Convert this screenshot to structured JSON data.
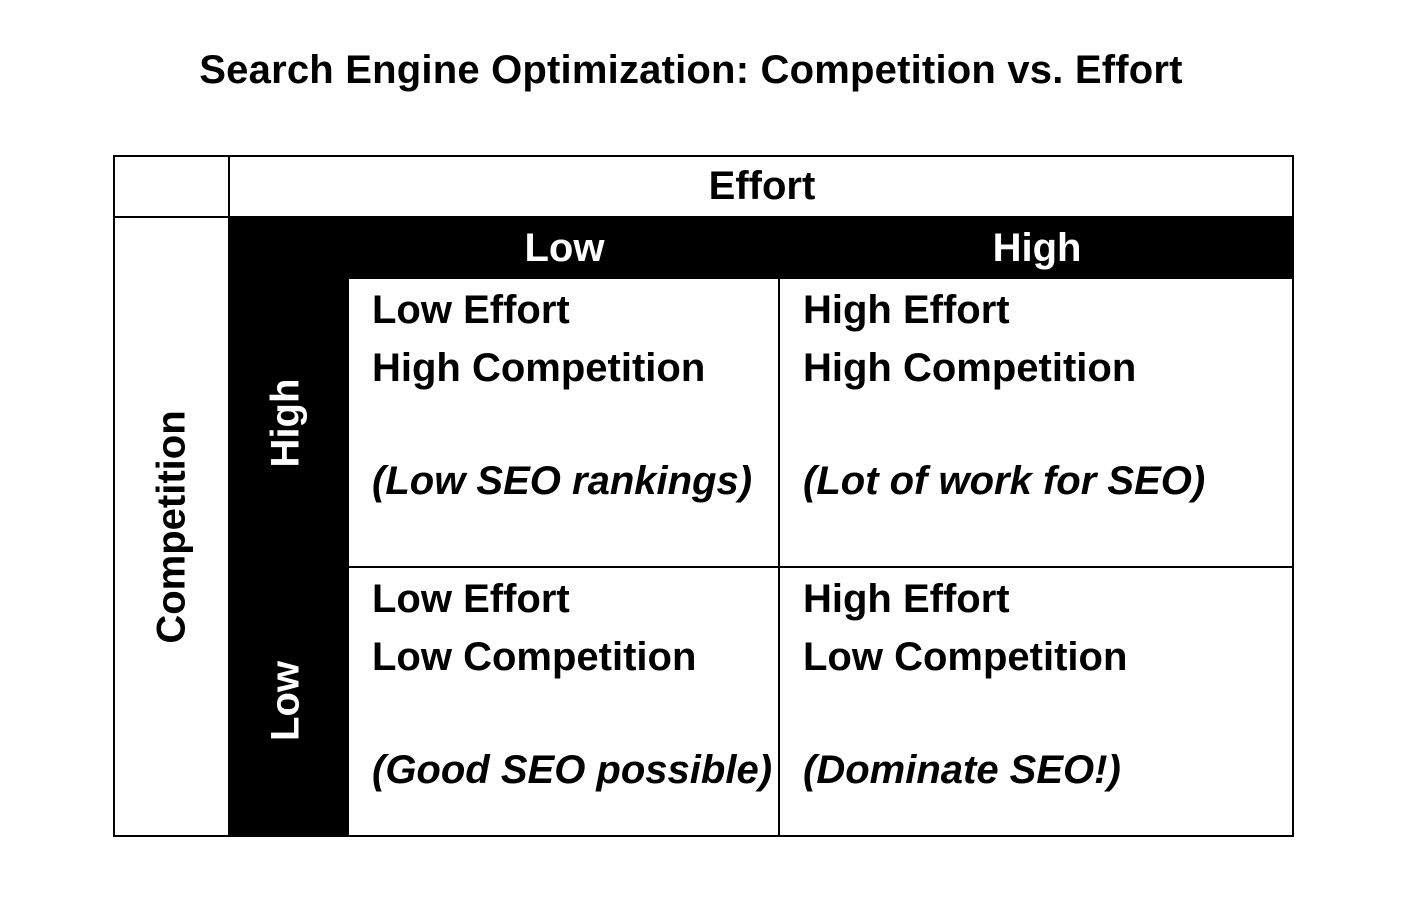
{
  "title": "Search Engine Optimization: Competition vs. Effort",
  "matrix": {
    "column_axis_label": "Effort",
    "row_axis_label": "Competition",
    "columns": [
      "Low",
      "High"
    ],
    "rows": [
      "High",
      "Low"
    ],
    "cells": {
      "high_competition_low_effort": {
        "line1": "Low Effort",
        "line2": "High Competition",
        "note": "(Low SEO rankings)"
      },
      "high_competition_high_effort": {
        "line1": "High Effort",
        "line2": "High Competition",
        "note": "(Lot of work for SEO)"
      },
      "low_competition_low_effort": {
        "line1": "Low Effort",
        "line2": "Low Competition",
        "note": "(Good SEO possible)"
      },
      "low_competition_high_effort": {
        "line1": "High Effort",
        "line2": "Low Competition",
        "note": "(Dominate SEO!)"
      }
    }
  },
  "colors": {
    "band": "#000000",
    "band_text": "#ffffff",
    "text": "#000000",
    "background": "#ffffff"
  }
}
